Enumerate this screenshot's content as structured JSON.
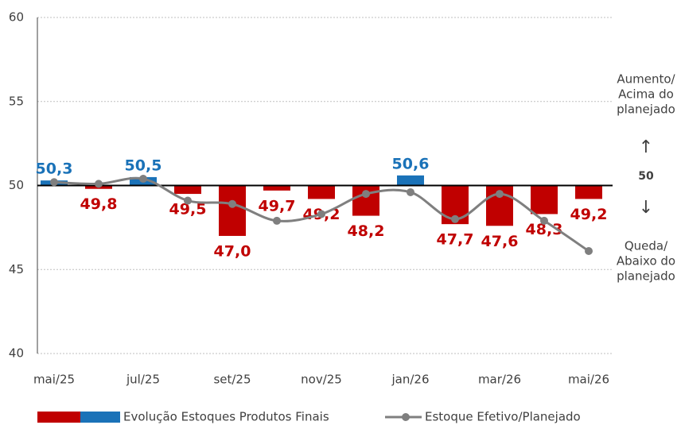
{
  "chart_data": {
    "type": "bar",
    "categories": [
      "mai/25",
      null,
      "jul/25",
      null,
      "set/25",
      null,
      "nov/25",
      null,
      "jan/26",
      null,
      "mar/26",
      null,
      "mai/26"
    ],
    "series": [
      {
        "name": "Evolução Estoques Produtos Finais",
        "type": "bar",
        "color_up": "#1a72b8",
        "color_down": "#c00000",
        "values": [
          50.3,
          49.8,
          50.5,
          49.5,
          47.0,
          49.7,
          49.2,
          48.2,
          50.6,
          47.7,
          47.6,
          48.3,
          49.2
        ],
        "value_labels": [
          "50,3",
          "49,8",
          "50,5",
          "49,5",
          "47,0",
          "49,7",
          "49,2",
          "48,2",
          "50,6",
          "47,7",
          "47,6",
          "48,3",
          "49,2"
        ]
      },
      {
        "name": "Estoque Efetivo/Planejado",
        "type": "line",
        "color": "#7f7f7f",
        "values": [
          50.2,
          50.1,
          50.4,
          49.1,
          48.9,
          47.9,
          48.3,
          49.5,
          49.6,
          48.0,
          49.5,
          47.9,
          46.1
        ]
      }
    ],
    "reference": 50,
    "annotations": {
      "above": [
        "Aumento/",
        "Acima do",
        "planejado"
      ],
      "below": [
        "Queda/",
        "Abaixo do",
        "planejado"
      ]
    },
    "ylim": [
      40,
      60
    ],
    "yticks": [
      40,
      45,
      50,
      55,
      60
    ],
    "grid": true
  }
}
